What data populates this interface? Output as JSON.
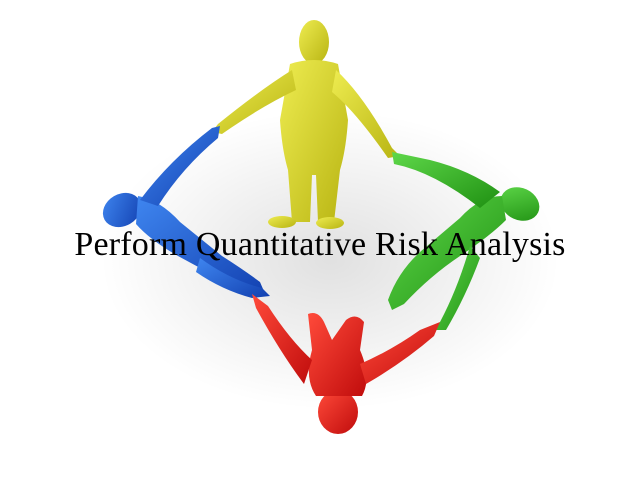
{
  "title": "Perform Quantitative Risk Analysis",
  "colors": {
    "background": "#ffffff",
    "figure_top": "#d4d21a",
    "figure_left": "#1f5fd6",
    "figure_right": "#2fb51f",
    "figure_bottom": "#e81414",
    "text": "#000000"
  },
  "illustration": {
    "figures": [
      "yellow-figure",
      "blue-figure",
      "green-figure",
      "red-figure"
    ],
    "arrangement": "four figures holding hands in a circle"
  }
}
